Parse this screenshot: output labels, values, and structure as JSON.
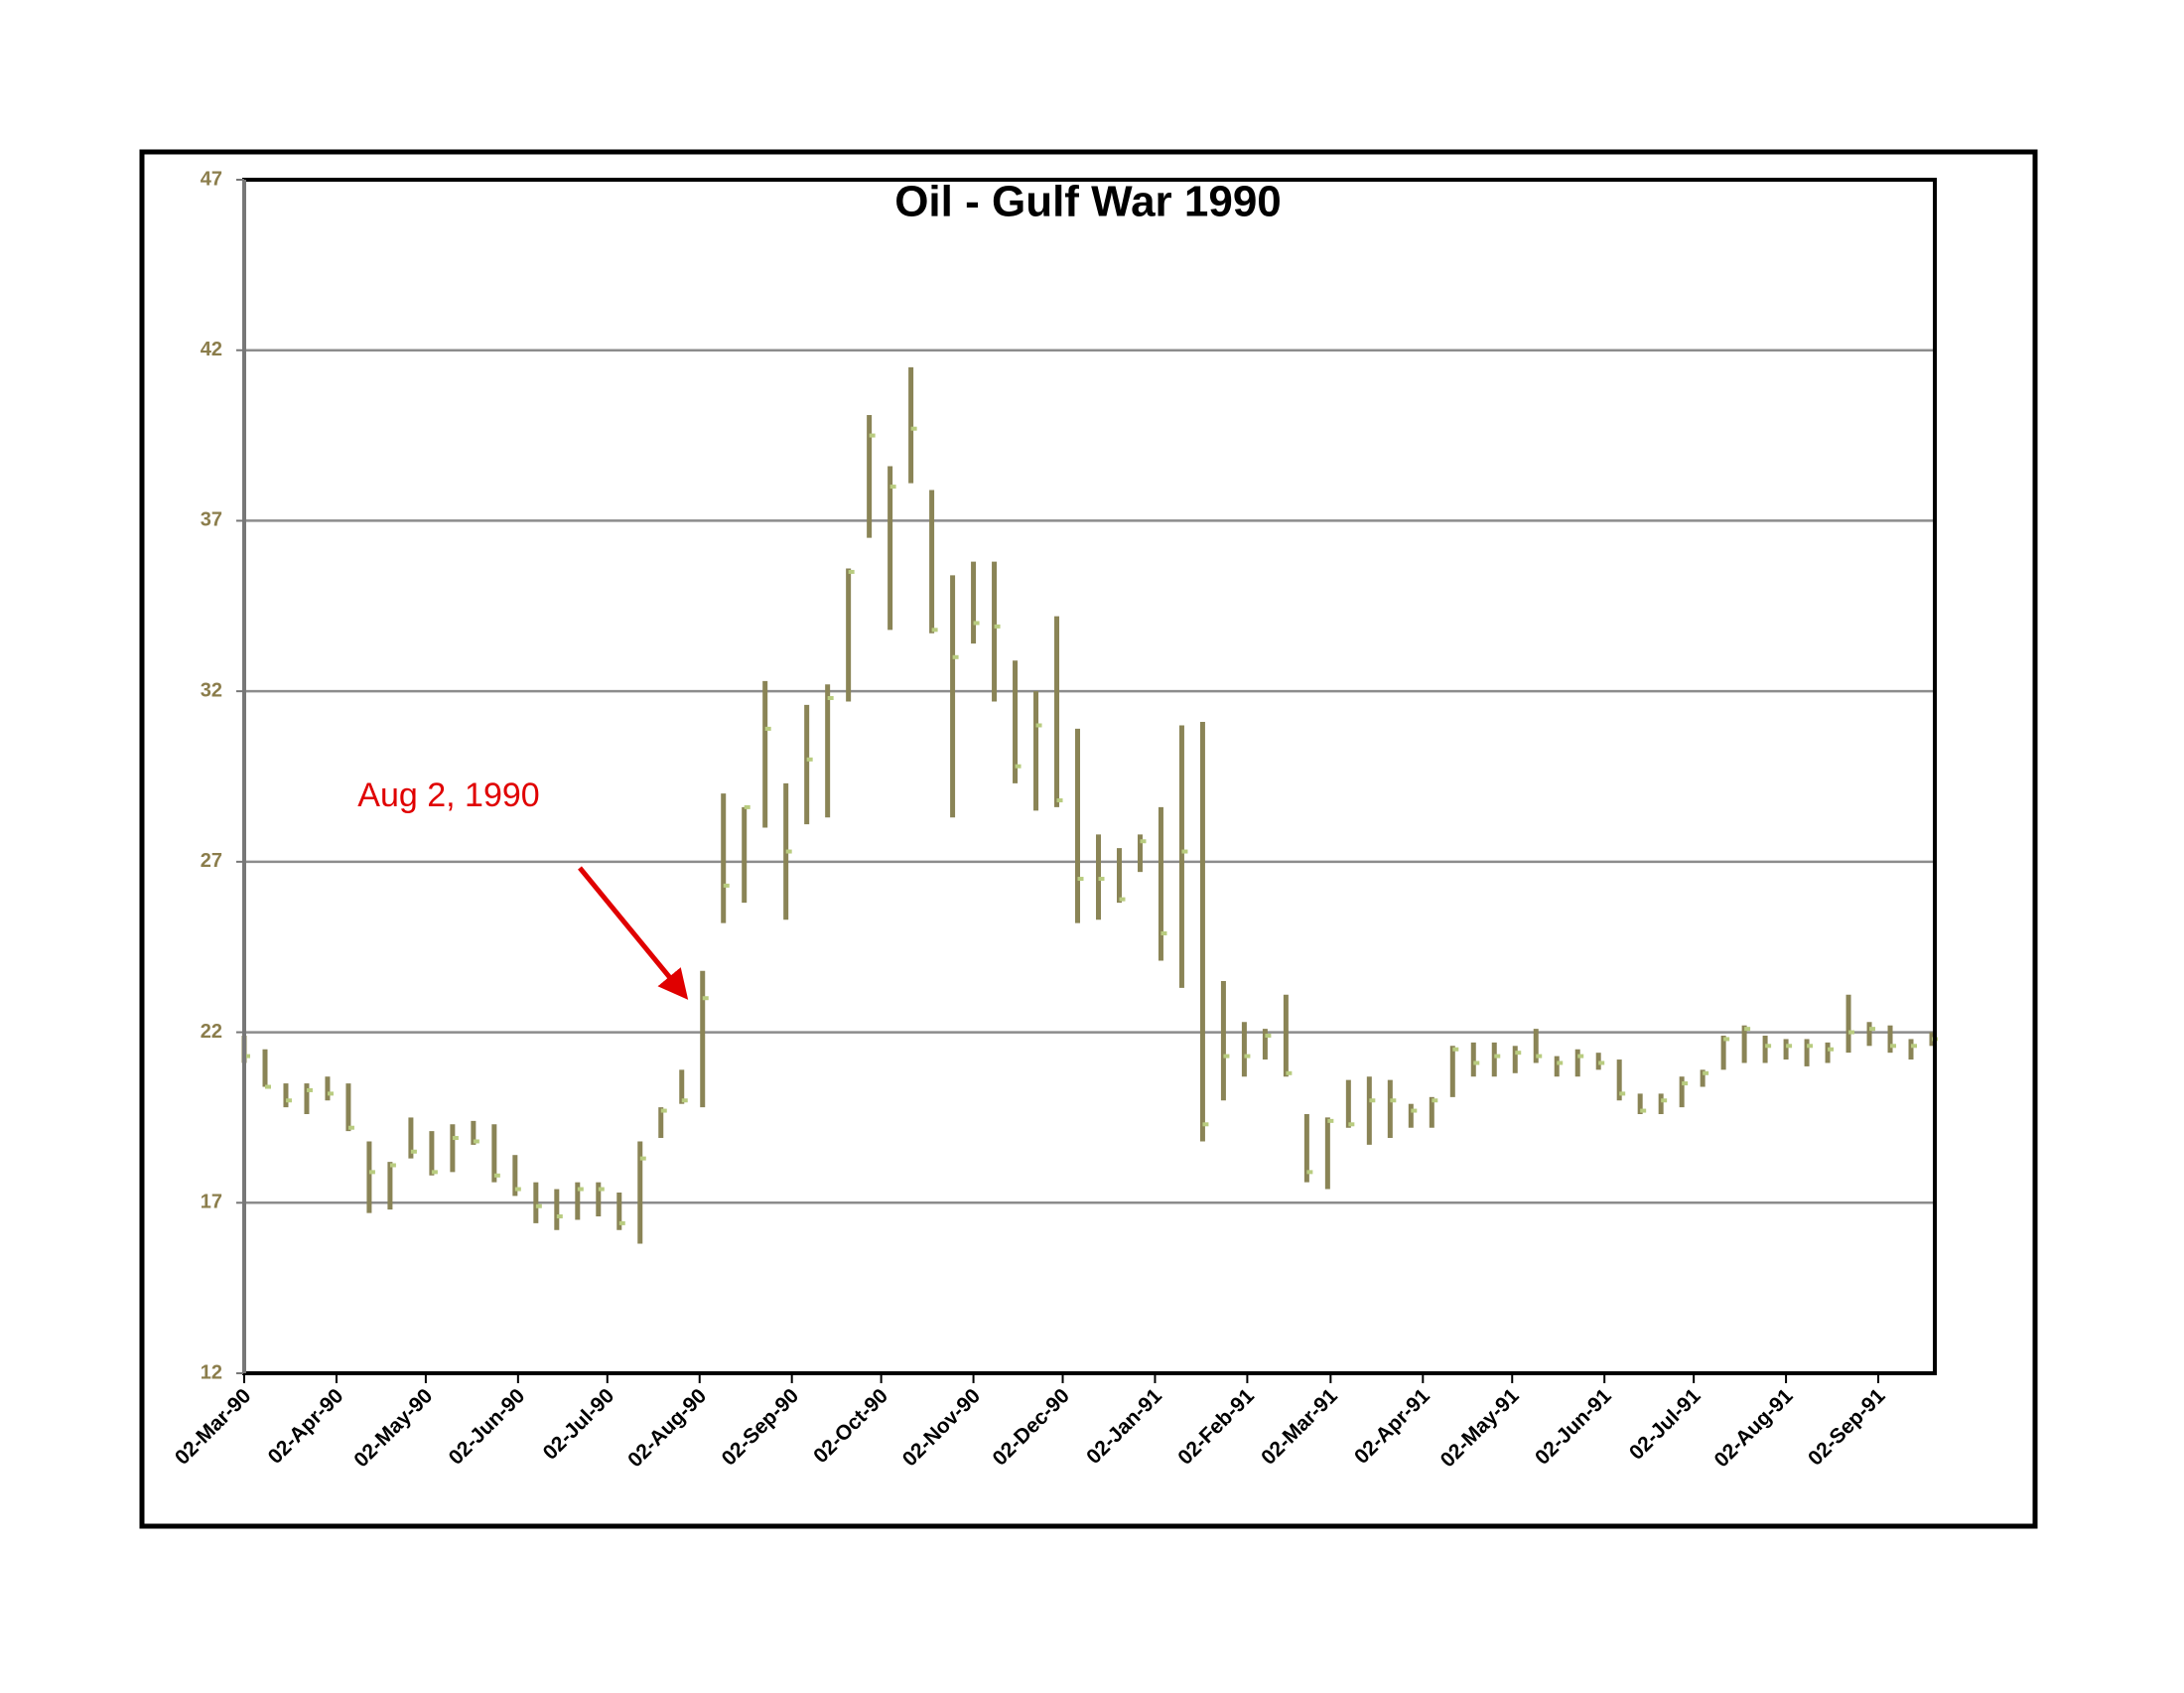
{
  "chart_data": {
    "type": "stock",
    "title": "Oil - Gulf War 1990",
    "annotation": "Aug 2, 1990",
    "color": "#8a8456",
    "close_color": "#b9cc80",
    "grid": true,
    "x": [
      "1990-03-02",
      "1990-03-09",
      "1990-03-16",
      "1990-03-23",
      "1990-03-30",
      "1990-04-06",
      "1990-04-13",
      "1990-04-20",
      "1990-04-27",
      "1990-05-04",
      "1990-05-11",
      "1990-05-18",
      "1990-05-25",
      "1990-06-01",
      "1990-06-08",
      "1990-06-15",
      "1990-06-22",
      "1990-06-29",
      "1990-07-06",
      "1990-07-13",
      "1990-07-20",
      "1990-07-27",
      "1990-08-03",
      "1990-08-10",
      "1990-08-17",
      "1990-08-24",
      "1990-08-31",
      "1990-09-07",
      "1990-09-14",
      "1990-09-21",
      "1990-09-28",
      "1990-10-05",
      "1990-10-12",
      "1990-10-19",
      "1990-10-26",
      "1990-11-02",
      "1990-11-09",
      "1990-11-16",
      "1990-11-23",
      "1990-11-30",
      "1990-12-07",
      "1990-12-14",
      "1990-12-21",
      "1990-12-28",
      "1991-01-04",
      "1991-01-11",
      "1991-01-18",
      "1991-01-25",
      "1991-02-01",
      "1991-02-08",
      "1991-02-15",
      "1991-02-22",
      "1991-03-01",
      "1991-03-08",
      "1991-03-15",
      "1991-03-22",
      "1991-03-29",
      "1991-04-05",
      "1991-04-12",
      "1991-04-19",
      "1991-04-26",
      "1991-05-03",
      "1991-05-10",
      "1991-05-17",
      "1991-05-24",
      "1991-05-31",
      "1991-06-07",
      "1991-06-14",
      "1991-06-21",
      "1991-06-28",
      "1991-07-05",
      "1991-07-12",
      "1991-07-19",
      "1991-07-26",
      "1991-08-02",
      "1991-08-09",
      "1991-08-16",
      "1991-08-23",
      "1991-08-30",
      "1991-09-06",
      "1991-09-13",
      "1991-09-20"
    ],
    "high": [
      21.9,
      21.5,
      20.5,
      20.5,
      20.7,
      20.5,
      18.8,
      18.2,
      19.5,
      19.1,
      19.3,
      19.4,
      19.3,
      18.4,
      17.6,
      17.4,
      17.6,
      17.6,
      17.3,
      18.8,
      19.8,
      20.9,
      23.8,
      29.0,
      28.6,
      32.3,
      29.3,
      31.6,
      32.2,
      35.6,
      40.1,
      38.6,
      41.5,
      37.9,
      35.4,
      35.8,
      35.8,
      32.9,
      32.0,
      34.2,
      30.9,
      27.8,
      27.4,
      27.8,
      28.6,
      31.0,
      31.1,
      23.5,
      22.3,
      22.1,
      23.1,
      19.6,
      19.5,
      20.6,
      20.7,
      20.6,
      19.9,
      20.1,
      21.6,
      21.7,
      21.7,
      21.6,
      22.1,
      21.3,
      21.5,
      21.4,
      21.2,
      20.2,
      20.2,
      20.7,
      20.9,
      21.9,
      22.2,
      21.9,
      21.8,
      21.8,
      21.7,
      23.1,
      22.3,
      22.2,
      21.8,
      22.0
    ],
    "low": [
      21.1,
      20.4,
      19.8,
      19.6,
      20.0,
      19.1,
      16.7,
      16.8,
      18.3,
      17.8,
      17.9,
      18.7,
      17.6,
      17.2,
      16.4,
      16.2,
      16.5,
      16.6,
      16.2,
      15.8,
      18.9,
      19.9,
      19.8,
      25.2,
      25.8,
      28.0,
      25.3,
      28.1,
      28.3,
      31.7,
      36.5,
      33.8,
      38.1,
      33.7,
      28.3,
      33.4,
      31.7,
      29.3,
      28.5,
      28.6,
      25.2,
      25.3,
      25.8,
      26.7,
      24.1,
      23.3,
      18.8,
      20.0,
      20.7,
      21.2,
      20.7,
      17.6,
      17.4,
      19.2,
      18.7,
      18.9,
      19.2,
      19.2,
      20.1,
      20.7,
      20.7,
      20.8,
      21.1,
      20.7,
      20.7,
      20.9,
      20.0,
      19.6,
      19.6,
      19.8,
      20.4,
      20.9,
      21.1,
      21.1,
      21.2,
      21.0,
      21.1,
      21.4,
      21.6,
      21.4,
      21.2,
      21.6
    ],
    "close": [
      21.3,
      20.4,
      20.0,
      20.3,
      20.2,
      19.2,
      17.9,
      18.1,
      18.5,
      17.9,
      18.9,
      18.8,
      17.8,
      17.4,
      16.9,
      16.6,
      17.4,
      17.4,
      16.4,
      18.3,
      19.7,
      20.0,
      23.0,
      26.3,
      28.6,
      30.9,
      27.3,
      30.0,
      31.8,
      35.5,
      39.5,
      38.0,
      39.7,
      33.8,
      33.0,
      34.0,
      33.9,
      29.8,
      31.0,
      28.8,
      26.5,
      26.5,
      25.9,
      27.6,
      24.9,
      27.3,
      19.3,
      21.3,
      21.3,
      21.9,
      20.8,
      17.9,
      19.4,
      19.3,
      20.0,
      20.0,
      19.7,
      20.0,
      21.5,
      21.1,
      21.3,
      21.4,
      21.3,
      21.1,
      21.3,
      21.1,
      20.2,
      19.7,
      20.0,
      20.5,
      20.8,
      21.8,
      22.1,
      21.6,
      21.6,
      21.6,
      21.5,
      22.0,
      22.1,
      21.6,
      21.6,
      21.8
    ],
    "xlim": [
      "1990-03-02",
      "1991-09-21"
    ],
    "xticks": [
      {
        "value": "1990-03-02",
        "label": "02-Mar-90"
      },
      {
        "value": "1990-04-02",
        "label": "02-Apr-90"
      },
      {
        "value": "1990-05-02",
        "label": "02-May-90"
      },
      {
        "value": "1990-06-02",
        "label": "02-Jun-90"
      },
      {
        "value": "1990-07-02",
        "label": "02-Jul-90"
      },
      {
        "value": "1990-08-02",
        "label": "02-Aug-90"
      },
      {
        "value": "1990-09-02",
        "label": "02-Sep-90"
      },
      {
        "value": "1990-10-02",
        "label": "02-Oct-90"
      },
      {
        "value": "1990-11-02",
        "label": "02-Nov-90"
      },
      {
        "value": "1990-12-02",
        "label": "02-Dec-90"
      },
      {
        "value": "1991-01-02",
        "label": "02-Jan-91"
      },
      {
        "value": "1991-02-02",
        "label": "02-Feb-91"
      },
      {
        "value": "1991-03-02",
        "label": "02-Mar-91"
      },
      {
        "value": "1991-04-02",
        "label": "02-Apr-91"
      },
      {
        "value": "1991-05-02",
        "label": "02-May-91"
      },
      {
        "value": "1991-06-02",
        "label": "02-Jun-91"
      },
      {
        "value": "1991-07-02",
        "label": "02-Jul-91"
      },
      {
        "value": "1991-08-02",
        "label": "02-Aug-91"
      },
      {
        "value": "1991-09-02",
        "label": "02-Sep-91"
      }
    ],
    "ylim": [
      12,
      47
    ],
    "yticks": [
      12,
      17,
      22,
      27,
      32,
      37,
      42,
      47
    ]
  }
}
